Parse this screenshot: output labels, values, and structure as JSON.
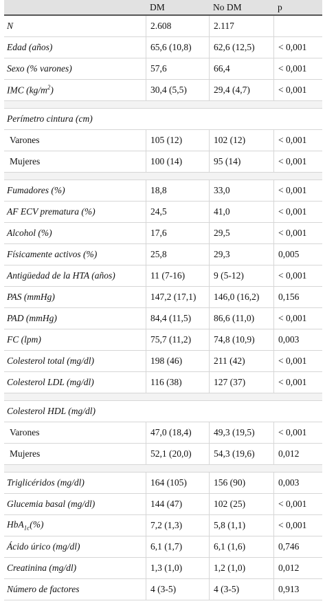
{
  "header": {
    "col0": "",
    "col1": "DM",
    "col2": "No DM",
    "col3": "p"
  },
  "rows": [
    {
      "type": "row",
      "label": "N",
      "dm": "2.608",
      "nodm": "2.117",
      "p": ""
    },
    {
      "type": "row",
      "label": "Edad (años)",
      "dm": "65,6 (10,8)",
      "nodm": "62,6 (12,5)",
      "p": "< 0,001"
    },
    {
      "type": "row",
      "label": "Sexo (% varones)",
      "dm": "57,6",
      "nodm": "66,4",
      "p": "< 0,001"
    },
    {
      "type": "row",
      "label": "IMC (kg/m",
      "labelSup": "2",
      "labelEnd": ")",
      "dm": "30,4 (5,5)",
      "nodm": "29,4 (4,7)",
      "p": "< 0,001"
    },
    {
      "type": "spacer"
    },
    {
      "type": "section",
      "label": "Perímetro cintura (cm)"
    },
    {
      "type": "sub",
      "label": "Varones",
      "dm": "105 (12)",
      "nodm": "102 (12)",
      "p": "< 0,001"
    },
    {
      "type": "sub",
      "label": "Mujeres",
      "dm": "100 (14)",
      "nodm": "95 (14)",
      "p": "< 0,001"
    },
    {
      "type": "spacer"
    },
    {
      "type": "row",
      "label": "Fumadores (%)",
      "dm": "18,8",
      "nodm": "33,0",
      "p": "< 0,001"
    },
    {
      "type": "row",
      "label": "AF ECV prematura (%)",
      "dm": "24,5",
      "nodm": "41,0",
      "p": "< 0,001"
    },
    {
      "type": "row",
      "label": "Alcohol (%)",
      "dm": "17,6",
      "nodm": "29,5",
      "p": "< 0,001"
    },
    {
      "type": "row",
      "label": "Físicamente activos (%)",
      "dm": "25,8",
      "nodm": "29,3",
      "p": "0,005"
    },
    {
      "type": "row",
      "label": "Antigüedad de la HTA (años)",
      "dm": "11 (7-16)",
      "nodm": "9 (5-12)",
      "p": "< 0,001"
    },
    {
      "type": "row",
      "label": "PAS (mmHg)",
      "dm": "147,2 (17,1)",
      "nodm": "146,0 (16,2)",
      "p": "0,156"
    },
    {
      "type": "row",
      "label": "PAD (mmHg)",
      "dm": "84,4 (11,5)",
      "nodm": "86,6 (11,0)",
      "p": "< 0,001"
    },
    {
      "type": "row",
      "label": "FC (lpm)",
      "dm": "75,7 (11,2)",
      "nodm": "74,8 (10,9)",
      "p": "0,003"
    },
    {
      "type": "row",
      "label": "Colesterol total (mg/dl)",
      "dm": "198 (46)",
      "nodm": "211 (42)",
      "p": "< 0,001"
    },
    {
      "type": "row",
      "label": "Colesterol LDL (mg/dl)",
      "dm": "116 (38)",
      "nodm": "127 (37)",
      "p": "< 0,001"
    },
    {
      "type": "spacer"
    },
    {
      "type": "section",
      "label": "Colesterol HDL (mg/dl)"
    },
    {
      "type": "sub",
      "label": "Varones",
      "dm": "47,0 (18,4)",
      "nodm": "49,3 (19,5)",
      "p": "< 0,001"
    },
    {
      "type": "sub",
      "label": "Mujeres",
      "dm": "52,1 (20,0)",
      "nodm": "54,3 (19,6)",
      "p": "0,012"
    },
    {
      "type": "spacer"
    },
    {
      "type": "row",
      "label": "Triglicéridos (mg/dl)",
      "dm": "164 (105)",
      "nodm": "156 (90)",
      "p": "0,003"
    },
    {
      "type": "row",
      "label": "Glucemia basal (mg/dl)",
      "dm": "144 (47)",
      "nodm": "102 (25)",
      "p": "< 0,001"
    },
    {
      "type": "row",
      "label": "HbA",
      "labelSub": "1c",
      "labelEnd": "(%)",
      "dm": "7,2 (1,3)",
      "nodm": "5,8 (1,1)",
      "p": "< 0,001"
    },
    {
      "type": "row",
      "label": "Ácido úrico (mg/dl)",
      "dm": "6,1 (1,7)",
      "nodm": "6,1 (1,6)",
      "p": "0,746"
    },
    {
      "type": "row",
      "label": "Creatinina (mg/dl)",
      "dm": "1,3 (1,0)",
      "nodm": "1,2 (1,0)",
      "p": "0,012"
    },
    {
      "type": "row",
      "label": "Número de factores",
      "dm": "4 (3-5)",
      "nodm": "4 (3-5)",
      "p": "0,913"
    }
  ]
}
